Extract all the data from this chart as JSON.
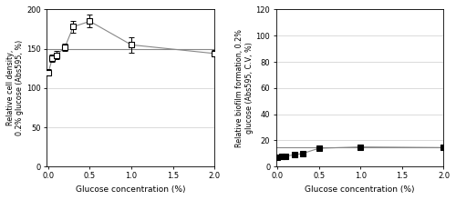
{
  "left": {
    "x": [
      0,
      0.05,
      0.1,
      0.2,
      0.3,
      0.5,
      1.0,
      2.0
    ],
    "y": [
      120,
      138,
      142,
      152,
      178,
      185,
      155,
      144
    ],
    "yerr": [
      4,
      5,
      5,
      5,
      8,
      8,
      10,
      4
    ],
    "ref_y": 150,
    "marker_facecolor": "white",
    "marker_edgecolor": "black",
    "line_color": "#888888",
    "ref_line_color": "#888888",
    "ylabel": "Relative cell density,\n0.2% glucose (Abs595, %)",
    "xlabel": "Glucose concentration (%)",
    "ylim": [
      0,
      200
    ],
    "yticks": [
      0,
      50,
      100,
      150,
      200
    ],
    "xlim": [
      -0.02,
      2.0
    ],
    "xticks": [
      0,
      0.5,
      1.0,
      1.5,
      2.0
    ]
  },
  "right": {
    "x": [
      0,
      0.05,
      0.1,
      0.2,
      0.3,
      0.5,
      1.0,
      2.0
    ],
    "y": [
      7,
      7.5,
      8,
      9,
      10,
      14,
      15,
      14.5
    ],
    "yerr": [
      0.3,
      0.3,
      0.3,
      0.4,
      0.5,
      0.6,
      0.7,
      0.5
    ],
    "ref_y": 14.5,
    "marker_facecolor": "black",
    "marker_edgecolor": "black",
    "line_color": "#888888",
    "ref_line_color": "#888888",
    "ylabel": "Relative biofilm formation, 0.2%\nglucose (Abs595, C.V, %)",
    "xlabel": "Glucose concentration (%)",
    "ylim": [
      0,
      120
    ],
    "yticks": [
      0,
      20,
      40,
      60,
      80,
      100,
      120
    ],
    "xlim": [
      -0.02,
      2.0
    ],
    "xticks": [
      0,
      0.5,
      1.0,
      1.5,
      2.0
    ]
  },
  "fig_width": 5.0,
  "fig_height": 2.2,
  "dpi": 100
}
